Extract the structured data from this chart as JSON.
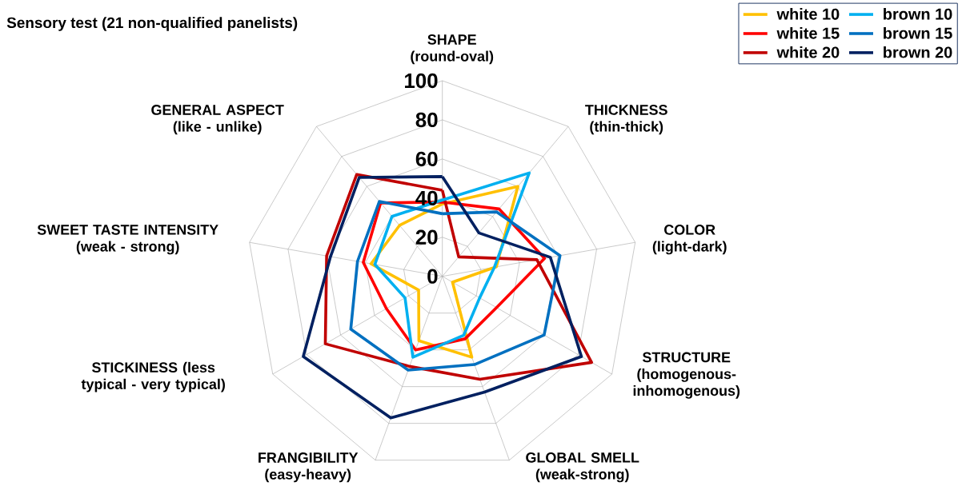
{
  "chart_data": {
    "type": "radar",
    "title": "Sensory test (21 non-qualified panelists)",
    "categories": [
      "SHAPE (round-oval)",
      "THICKNESS (thin-thick)",
      "COLOR (light-dark)",
      "STRUCTURE (homogenous-inhomogenous)",
      "GLOBAL SMELL (weak-strong)",
      "FRANGIBILITY (easy-heavy)",
      "STICKINESS (less typical - very typical)",
      "SWEET TASTE INTENSITY (weak - strong)",
      "GENERAL ASPECT (like - unlike)"
    ],
    "ylim": [
      0,
      100
    ],
    "yticks": [
      0,
      20,
      40,
      60,
      80,
      100
    ],
    "grid": true,
    "legend": "top right",
    "series": [
      {
        "name": "white 10",
        "color": "#ffc000",
        "values": [
          37,
          60,
          28,
          6,
          44,
          35,
          14,
          37,
          34
        ]
      },
      {
        "name": "white 15",
        "color": "#ff0000",
        "values": [
          38,
          45,
          53,
          32,
          34,
          40,
          33,
          41,
          49
        ]
      },
      {
        "name": "white 20",
        "color": "#c00000",
        "values": [
          44,
          13,
          49,
          88,
          56,
          49,
          69,
          60,
          68
        ]
      },
      {
        "name": "brown 10",
        "color": "#00b0f0",
        "values": [
          39,
          69,
          27,
          22,
          32,
          44,
          22,
          35,
          40
        ]
      },
      {
        "name": "brown 15",
        "color": "#0070c0",
        "values": [
          32,
          43,
          61,
          60,
          48,
          51,
          54,
          44,
          50
        ]
      },
      {
        "name": "brown 20",
        "color": "#002060",
        "values": [
          51,
          29,
          56,
          82,
          63,
          77,
          82,
          58,
          66
        ]
      }
    ]
  }
}
